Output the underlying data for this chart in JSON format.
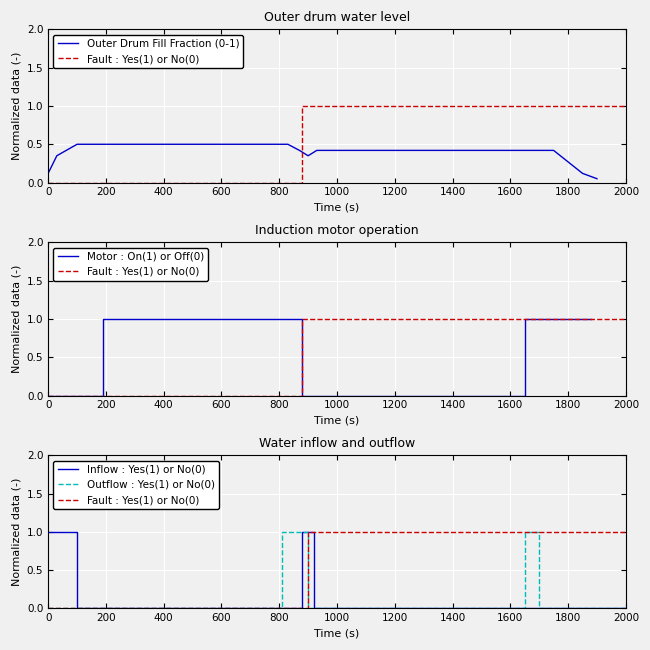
{
  "title1": "Outer drum water level",
  "title2": "Induction motor operation",
  "title3": "Water inflow and outflow",
  "xlabel": "Time (s)",
  "ylabel": "Normalized data (-)",
  "xlim": [
    0,
    2000
  ],
  "ylim": [
    0,
    2
  ],
  "yticks": [
    0,
    0.5,
    1,
    1.5,
    2
  ],
  "xticks": [
    0,
    200,
    400,
    600,
    800,
    1000,
    1200,
    1400,
    1600,
    1800,
    2000
  ],
  "plot1": {
    "water_x": [
      0,
      30,
      100,
      200,
      830,
      870,
      900,
      930,
      950,
      1650,
      1750,
      1850,
      1900
    ],
    "water_y": [
      0.12,
      0.35,
      0.5,
      0.5,
      0.5,
      0.42,
      0.35,
      0.42,
      0.42,
      0.42,
      0.42,
      0.12,
      0.05
    ],
    "fault_x": [
      0,
      880,
      880,
      900,
      900,
      2000
    ],
    "fault_y": [
      0,
      0,
      1,
      1,
      1,
      1
    ],
    "legend1": "Outer Drum Fill Fraction (0-1)",
    "legend2": "Fault : Yes(1) or No(0)"
  },
  "plot2": {
    "motor_x": [
      0,
      190,
      190,
      880,
      880,
      1650,
      1650,
      1880
    ],
    "motor_y": [
      0,
      0,
      1,
      1,
      0,
      0,
      1,
      1
    ],
    "fault_x": [
      0,
      880,
      880,
      900,
      900,
      2000
    ],
    "fault_y": [
      0,
      0,
      1,
      1,
      1,
      1
    ],
    "legend1": "Motor : On(1) or Off(0)",
    "legend2": "Fault : Yes(1) or No(0)"
  },
  "plot3": {
    "inflow_x": [
      0,
      100,
      100,
      880,
      880,
      920,
      920,
      2000
    ],
    "inflow_y": [
      1,
      1,
      0,
      0,
      1,
      1,
      0,
      0
    ],
    "outflow_x": [
      0,
      810,
      810,
      900,
      900,
      1650,
      1650,
      1700,
      1700,
      2000
    ],
    "outflow_y": [
      0,
      0,
      1,
      1,
      0,
      0,
      1,
      1,
      0,
      0
    ],
    "fault_x": [
      0,
      900,
      900,
      920,
      920,
      2000
    ],
    "fault_y": [
      0,
      0,
      1,
      1,
      1,
      1
    ],
    "legend1": "Inflow : Yes(1) or No(0)",
    "legend2": "Outflow : Yes(1) or No(0)",
    "legend3": "Fault : Yes(1) or No(0)"
  },
  "color_blue": "#0000CC",
  "color_red": "#CC0000",
  "color_cyan": "#00BBBB",
  "linewidth": 1.0,
  "bg_color": "#F0F0F0",
  "fontsize_title": 9,
  "fontsize_label": 8,
  "fontsize_tick": 7.5,
  "fontsize_legend": 7.5
}
